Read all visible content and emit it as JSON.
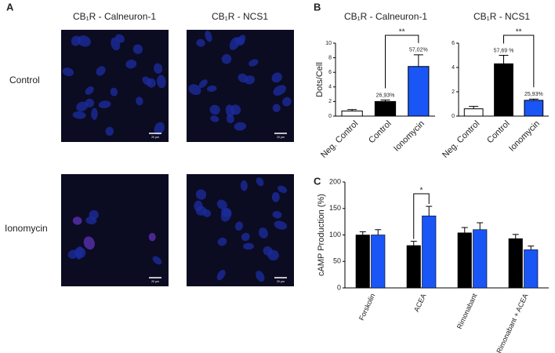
{
  "panels": {
    "a": "A",
    "b": "B",
    "c": "C"
  },
  "micrographs": {
    "columns": [
      "CB₁R - Calneuron-1",
      "CB₁R - NCS1"
    ],
    "rows": [
      "Control",
      "Ionomycin"
    ],
    "scale_bar": "20 µm"
  },
  "chart_data": [
    {
      "type": "bar",
      "title": "CB₁R - Calneuron-1",
      "y_label": "Dots/Cell",
      "categories": [
        "Neg. Control",
        "Control",
        "Ionomycin"
      ],
      "values": [
        0.7,
        2.0,
        6.8
      ],
      "errors": [
        0.2,
        0.2,
        1.6
      ],
      "colors": [
        "#ffffff",
        "#000000",
        "#1a55f5"
      ],
      "annotations": [
        {
          "at": "Control",
          "text": "26,93%"
        },
        {
          "at": "Ionomycin",
          "text": "57,02%"
        }
      ],
      "significance": {
        "from": "Control",
        "to": "Ionomycin",
        "label": "**"
      },
      "ylim": [
        0,
        10
      ],
      "yticks": [
        0,
        2,
        4,
        6,
        8,
        10
      ]
    },
    {
      "type": "bar",
      "title": "CB₁R - NCS1",
      "categories": [
        "Neg. Control",
        "Control",
        "Ionomycin"
      ],
      "values": [
        0.6,
        4.3,
        1.3
      ],
      "errors": [
        0.2,
        0.7,
        0.1
      ],
      "colors": [
        "#ffffff",
        "#000000",
        "#1a55f5"
      ],
      "annotations": [
        {
          "at": "Control",
          "text": "57,69 %"
        },
        {
          "at": "Ionomycin",
          "text": "25,93%"
        }
      ],
      "significance": {
        "from": "Control",
        "to": "Ionomycin",
        "label": "**"
      },
      "ylim": [
        0,
        6
      ],
      "yticks": [
        0,
        2,
        4,
        6
      ]
    },
    {
      "type": "bar",
      "y_label": "cAMP Production (%)",
      "categories": [
        "Forskolin",
        "ACEA",
        "Rimonabant",
        "Rimonabant + ACEA"
      ],
      "series": [
        {
          "color": "#000000",
          "values": [
            100,
            80,
            104,
            93
          ],
          "errors": [
            6,
            8,
            10,
            8
          ]
        },
        {
          "color": "#1a55f5",
          "values": [
            100,
            136,
            110,
            72
          ],
          "errors": [
            10,
            18,
            13,
            7
          ]
        }
      ],
      "significance": {
        "category": "ACEA",
        "label": "*"
      },
      "ylim": [
        0,
        200
      ],
      "yticks": [
        0,
        50,
        100,
        150,
        200
      ]
    }
  ]
}
